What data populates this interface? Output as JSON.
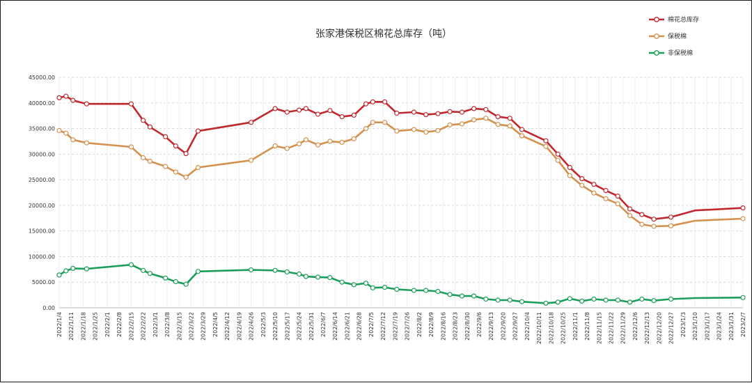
{
  "chart_data": {
    "type": "line",
    "title": "张家港保税区棉花总库存（吨）",
    "xlabel": "",
    "ylabel": "",
    "ylim": [
      0,
      45000
    ],
    "yticks": [
      "0.00",
      "5000.00",
      "10000.00",
      "15000.00",
      "20000.00",
      "25000.00",
      "30000.00",
      "35000.00",
      "40000.00",
      "45000.00"
    ],
    "grid": "horizontal dashed",
    "legend_position": "top-right",
    "x_ticks": [
      "2022/1/4",
      "2022/1/11",
      "2022/1/18",
      "2022/1/25",
      "2022/2/1",
      "2022/2/8",
      "2022/2/15",
      "2022/2/22",
      "2022/3/1",
      "2022/3/8",
      "2022/3/15",
      "2022/3/22",
      "2022/3/29",
      "2022/4/5",
      "2022/4/12",
      "2022/4/19",
      "2022/4/26",
      "2022/5/3",
      "2022/5/10",
      "2022/5/17",
      "2022/5/24",
      "2022/5/31",
      "2022/6/7",
      "2022/6/14",
      "2022/6/21",
      "2022/6/28",
      "2022/7/5",
      "2022/7/12",
      "2022/7/19",
      "2022/7/26",
      "2022/8/2",
      "2022/8/9",
      "2022/8/16",
      "2022/8/23",
      "2022/8/30",
      "2022/9/6",
      "2022/9/13",
      "2022/9/20",
      "2022/9/27",
      "2022/10/4",
      "2022/10/11",
      "2022/10/18",
      "2022/10/25",
      "2022/11/1",
      "2022/11/8",
      "2022/11/15",
      "2022/11/22",
      "2022/11/29",
      "2022/12/6",
      "2022/12/13",
      "2022/12/20",
      "2022/12/27",
      "2023/1/3",
      "2023/1/10",
      "2023/1/17",
      "2023/1/24",
      "2023/1/31",
      "2023/2/7"
    ],
    "x": [
      "2022/1/4",
      "2022/1/8",
      "2022/1/12",
      "2022/1/20",
      "2022/2/15",
      "2022/2/22",
      "2022/2/26",
      "2022/3/7",
      "2022/3/13",
      "2022/3/19",
      "2022/3/26",
      "2022/4/26",
      "2022/5/10",
      "2022/5/17",
      "2022/5/24",
      "2022/5/28",
      "2022/6/4",
      "2022/6/11",
      "2022/6/18",
      "2022/6/25",
      "2022/7/2",
      "2022/7/6",
      "2022/7/13",
      "2022/7/20",
      "2022/7/30",
      "2022/8/6",
      "2022/8/13",
      "2022/8/20",
      "2022/8/27",
      "2022/9/3",
      "2022/9/10",
      "2022/9/17",
      "2022/9/24",
      "2022/10/1",
      "2022/10/15",
      "2022/10/22",
      "2022/10/29",
      "2022/11/5",
      "2022/11/12",
      "2022/11/19",
      "2022/11/26",
      "2022/12/3",
      "2022/12/10",
      "2022/12/17",
      "2022/12/27",
      "2023/1/10",
      "2023/2/7"
    ],
    "series": [
      {
        "name": "棉花总库存",
        "color": "#c0282d",
        "values": [
          41000,
          41300,
          40500,
          39800,
          39800,
          36600,
          35300,
          33400,
          31600,
          30100,
          34500,
          36200,
          38900,
          38200,
          38600,
          38900,
          37800,
          38500,
          37300,
          37600,
          39800,
          40200,
          40200,
          38000,
          38200,
          37700,
          37900,
          38300,
          38200,
          38900,
          38700,
          37300,
          37000,
          34800,
          32600,
          30000,
          27400,
          25200,
          24100,
          22900,
          21800,
          19300,
          18200,
          17300,
          17700,
          19000,
          19500
        ],
        "marker_values": [
          41000,
          41300,
          40500,
          39800,
          39800,
          36600,
          35300,
          33400,
          31600,
          30100,
          34500,
          36200,
          38900,
          38200,
          38600,
          38900,
          37800,
          38500,
          37300,
          37600,
          39800,
          40200,
          40200,
          38000,
          38200,
          37700,
          37900,
          38300,
          38200,
          38900,
          38700,
          37300,
          37000,
          34800,
          32600,
          30000,
          27400,
          25200,
          24100,
          22900,
          21800,
          19300,
          18200,
          17300,
          17700,
          19500
        ]
      },
      {
        "name": "保税棉",
        "color": "#d4914e",
        "values": [
          34600,
          34100,
          32800,
          32200,
          31400,
          29300,
          28600,
          27600,
          26500,
          25500,
          27400,
          28800,
          31600,
          31100,
          32000,
          32800,
          31800,
          32500,
          32300,
          33000,
          35000,
          36200,
          36200,
          34500,
          34800,
          34300,
          34600,
          35700,
          35900,
          36700,
          37000,
          35800,
          35500,
          33600,
          31500,
          28800,
          25800,
          23900,
          22400,
          21300,
          20300,
          18000,
          16300,
          15900,
          16000,
          17000,
          17400
        ],
        "marker_values": [
          34600,
          34100,
          32800,
          32200,
          31400,
          29300,
          28600,
          27600,
          26500,
          25500,
          27400,
          28800,
          31600,
          31100,
          32000,
          32800,
          31800,
          32500,
          32300,
          33000,
          35000,
          36200,
          36200,
          34500,
          34800,
          34300,
          34600,
          35700,
          35900,
          36700,
          37000,
          35800,
          35500,
          33600,
          31500,
          28800,
          25800,
          23900,
          22400,
          21300,
          20300,
          18000,
          16300,
          15900,
          16000,
          17400
        ]
      },
      {
        "name": "非保税棉",
        "color": "#1a9e5a",
        "values": [
          6400,
          7200,
          7700,
          7600,
          8400,
          7300,
          6700,
          5800,
          5100,
          4600,
          7100,
          7400,
          7300,
          7000,
          6600,
          6100,
          6000,
          5900,
          5000,
          4500,
          4800,
          3900,
          4000,
          3600,
          3400,
          3400,
          3200,
          2600,
          2300,
          2300,
          1700,
          1500,
          1500,
          1200,
          900,
          1100,
          1800,
          1300,
          1700,
          1500,
          1500,
          1100,
          1700,
          1400,
          1700,
          1900,
          2000
        ],
        "marker_values": [
          6400,
          7200,
          7700,
          7600,
          8400,
          7300,
          6700,
          5800,
          5100,
          4600,
          7100,
          7400,
          7300,
          7000,
          6600,
          6100,
          6000,
          5900,
          5000,
          4500,
          4800,
          3900,
          4000,
          3600,
          3400,
          3400,
          3200,
          2600,
          2300,
          2300,
          1700,
          1500,
          1500,
          1200,
          900,
          1100,
          1800,
          1300,
          1700,
          1500,
          1500,
          1100,
          1700,
          1400,
          1700,
          2000
        ]
      }
    ]
  }
}
